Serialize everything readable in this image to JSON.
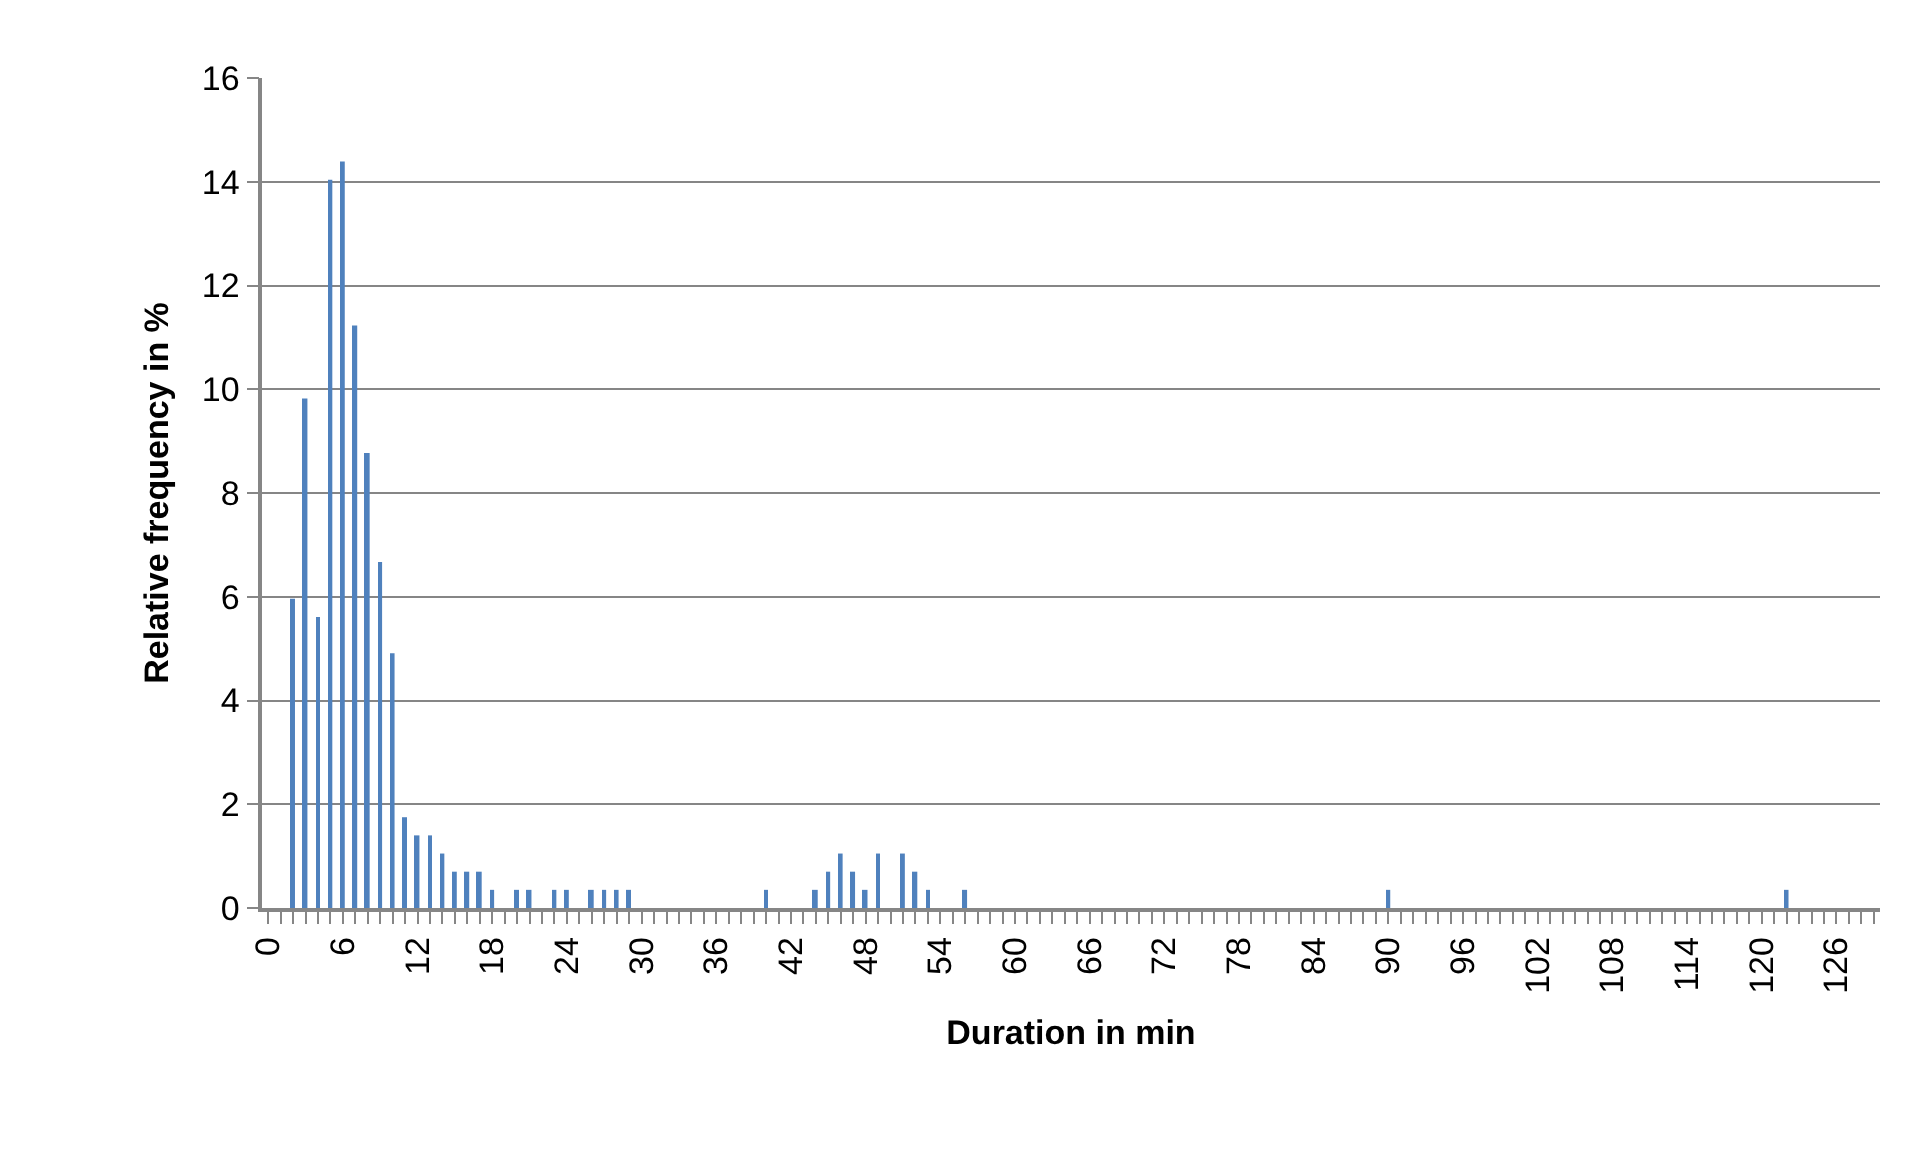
{
  "chart_data": {
    "type": "bar",
    "xlabel": "Duration in min",
    "ylabel": "Relative frequency in %",
    "categories": [
      "0",
      null,
      null,
      null,
      null,
      null,
      "6",
      null,
      null,
      null,
      null,
      null,
      "12",
      null,
      null,
      null,
      null,
      null,
      "18",
      null,
      null,
      null,
      null,
      null,
      "24",
      null,
      null,
      null,
      null,
      null,
      "30",
      null,
      null,
      null,
      null,
      null,
      "36",
      null,
      null,
      null,
      null,
      null,
      "42",
      null,
      null,
      null,
      null,
      null,
      "48",
      null,
      null,
      null,
      null,
      null,
      "54",
      null,
      null,
      null,
      null,
      null,
      "60",
      null,
      null,
      null,
      null,
      null,
      "66",
      null,
      null,
      null,
      null,
      null,
      "72",
      null,
      null,
      null,
      null,
      null,
      "78",
      null,
      null,
      null,
      null,
      null,
      "84",
      null,
      null,
      null,
      null,
      null,
      "90",
      null,
      null,
      null,
      null,
      null,
      "96",
      null,
      null,
      null,
      null,
      null,
      "102",
      null,
      null,
      null,
      null,
      null,
      "108",
      null,
      null,
      null,
      null,
      null,
      "114",
      null,
      null,
      null,
      null,
      null,
      "120",
      null,
      null,
      null,
      null,
      null,
      "126",
      null,
      null,
      null
    ],
    "values": [
      0,
      0,
      5.96,
      9.82,
      5.61,
      14.04,
      14.39,
      11.23,
      8.77,
      6.67,
      4.91,
      1.75,
      1.4,
      1.4,
      1.05,
      0.7,
      0.7,
      0.7,
      0.35,
      0,
      0.35,
      0.35,
      0,
      0.35,
      0.35,
      0,
      0.35,
      0.35,
      0.35,
      0.35,
      0,
      0,
      0,
      0,
      0,
      0,
      0,
      0,
      0,
      0,
      0.35,
      0,
      0,
      0,
      0.35,
      0.7,
      1.05,
      0.7,
      0.35,
      1.05,
      0,
      1.05,
      0.7,
      0.35,
      0,
      0,
      0.35,
      0,
      0,
      0,
      0,
      0,
      0,
      0,
      0,
      0,
      0,
      0,
      0,
      0,
      0,
      0,
      0,
      0,
      0,
      0,
      0,
      0,
      0,
      0,
      0,
      0,
      0,
      0,
      0,
      0,
      0,
      0,
      0,
      0,
      0.35,
      0,
      0,
      0,
      0,
      0,
      0,
      0,
      0,
      0,
      0,
      0,
      0,
      0,
      0,
      0,
      0,
      0,
      0,
      0,
      0,
      0,
      0,
      0,
      0,
      0,
      0,
      0,
      0,
      0,
      0,
      0,
      0.35,
      0,
      0,
      0,
      0,
      0,
      0,
      0
    ],
    "color": "#4f81bd",
    "ylim": [
      0,
      16
    ],
    "yticks": [
      0,
      2,
      4,
      6,
      8,
      10,
      12,
      14,
      16
    ],
    "grid": "y"
  }
}
